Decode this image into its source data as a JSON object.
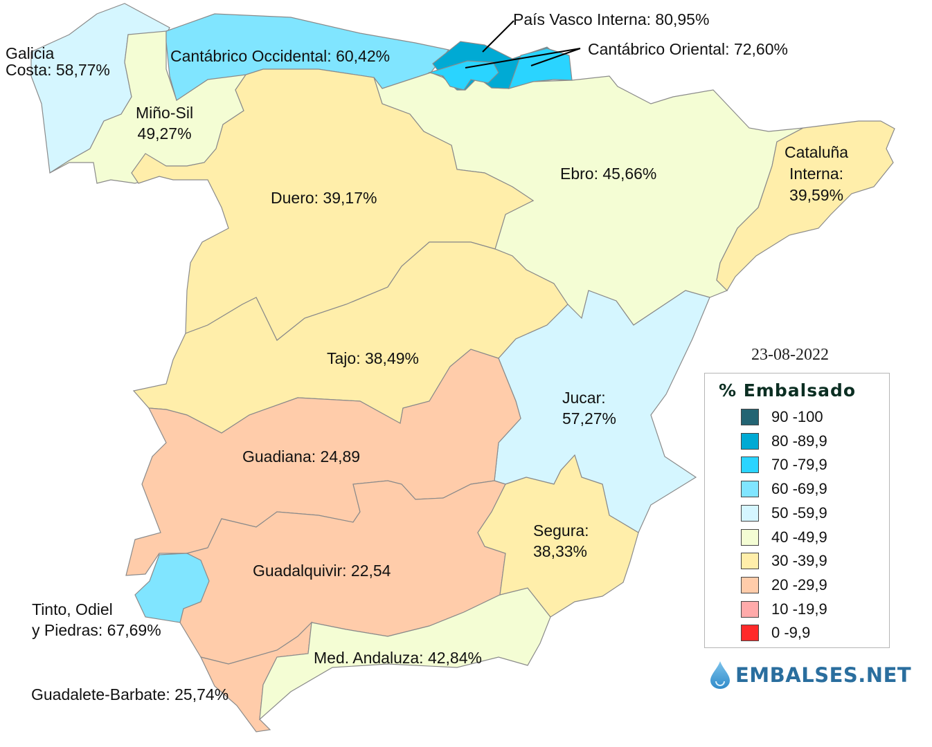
{
  "date": "23-08-2022",
  "legend": {
    "title": "% Embalsado",
    "items": [
      {
        "label": "90 -100",
        "color": "#236473"
      },
      {
        "label": "80 -89,9",
        "color": "#00aad4"
      },
      {
        "label": "70 -79,9",
        "color": "#2ad4ff"
      },
      {
        "label": "60 -69,9",
        "color": "#80e5ff"
      },
      {
        "label": "50 -59,9",
        "color": "#d5f6ff"
      },
      {
        "label": "40 -49,9",
        "color": "#f4fdd4"
      },
      {
        "label": "30 -39,9",
        "color": "#ffeeaa"
      },
      {
        "label": "20 -29,9",
        "color": "#ffccaa"
      },
      {
        "label": "10 -19,9",
        "color": "#ffaaaa"
      },
      {
        "label": "0 -9,9",
        "color": "#ff2a2a"
      }
    ]
  },
  "logo": {
    "text": "EMBALSES.NET"
  },
  "regions": [
    {
      "id": "galicia",
      "label_lines": [
        "Galicia",
        "Costa: 58,77%"
      ],
      "value": 58.77,
      "color": "#d5f6ff"
    },
    {
      "id": "mino",
      "label_lines": [
        "Miño-Sil",
        "49,27%"
      ],
      "value": 49.27,
      "color": "#f4fdd4"
    },
    {
      "id": "cantocc",
      "label_lines": [
        "Cantábrico Occidental: 60,42%"
      ],
      "value": 60.42,
      "color": "#80e5ff"
    },
    {
      "id": "pvasco",
      "label_lines": [
        "País Vasco Interna: 80,95%"
      ],
      "value": 80.95,
      "color": "#00aad4"
    },
    {
      "id": "cantor",
      "label_lines": [
        "Cantábrico Oriental: 72,60%"
      ],
      "value": 72.6,
      "color": "#2ad4ff"
    },
    {
      "id": "ebro",
      "label_lines": [
        "Ebro: 45,66%"
      ],
      "value": 45.66,
      "color": "#f4fdd4"
    },
    {
      "id": "cataluna",
      "label_lines": [
        "Cataluña",
        "Interna:",
        "39,59%"
      ],
      "value": 39.59,
      "color": "#ffeeaa"
    },
    {
      "id": "duero",
      "label_lines": [
        "Duero: 39,17%"
      ],
      "value": 39.17,
      "color": "#ffeeaa"
    },
    {
      "id": "tajo",
      "label_lines": [
        "Tajo: 38,49%"
      ],
      "value": 38.49,
      "color": "#ffeeaa"
    },
    {
      "id": "jucar",
      "label_lines": [
        "Jucar:",
        "57,27%"
      ],
      "value": 57.27,
      "color": "#d5f6ff"
    },
    {
      "id": "guadiana",
      "label_lines": [
        "Guadiana: 24,89"
      ],
      "value": 24.89,
      "color": "#ffccaa"
    },
    {
      "id": "segura",
      "label_lines": [
        "Segura:",
        "38,33%"
      ],
      "value": 38.33,
      "color": "#ffeeaa"
    },
    {
      "id": "guadalquivir",
      "label_lines": [
        "Guadalquivir: 22,54"
      ],
      "value": 22.54,
      "color": "#ffccaa"
    },
    {
      "id": "tinto",
      "label_lines": [
        "Tinto, Odiel",
        "y Piedras: 67,69%"
      ],
      "value": 67.69,
      "color": "#80e5ff"
    },
    {
      "id": "medand",
      "label_lines": [
        "Med. Andaluza: 42,84%"
      ],
      "value": 42.84,
      "color": "#f4fdd4"
    },
    {
      "id": "guadalete",
      "label_lines": [
        "Guadalete-Barbate: 25,74%"
      ],
      "value": 25.74,
      "color": "#ffccaa"
    }
  ]
}
